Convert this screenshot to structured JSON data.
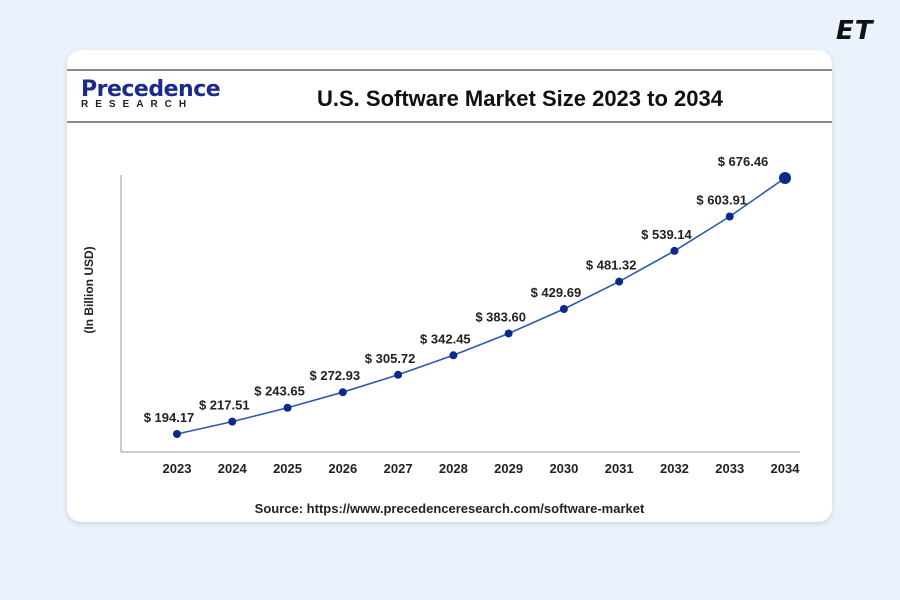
{
  "brand": "ET",
  "logo": {
    "name": "Precedence",
    "sub": "RESEARCH"
  },
  "chart_data": {
    "type": "line",
    "title": "U.S. Software Market Size 2023 to 2034",
    "ylabel": "(In Billion USD)",
    "xlabel": "",
    "categories": [
      "2023",
      "2024",
      "2025",
      "2026",
      "2027",
      "2028",
      "2029",
      "2030",
      "2031",
      "2032",
      "2033",
      "2034"
    ],
    "values": [
      194.17,
      217.51,
      243.65,
      272.93,
      305.72,
      342.45,
      383.6,
      429.69,
      481.32,
      539.14,
      603.91,
      676.46
    ],
    "data_labels": [
      "$ 194.17",
      "$ 217.51",
      "$ 243.65",
      "$ 272.93",
      "$ 305.72",
      "$ 342.45",
      "$ 383.60",
      "$ 429.69",
      "$ 481.32",
      "$ 539.14",
      "$ 603.91",
      "$ 676.46"
    ],
    "ylim": [
      150,
      700
    ],
    "grid": false,
    "line_color": "#2a5cab",
    "marker_color": "#0d2a8a"
  },
  "source": "Source: https://www.precedenceresearch.com/software-market"
}
